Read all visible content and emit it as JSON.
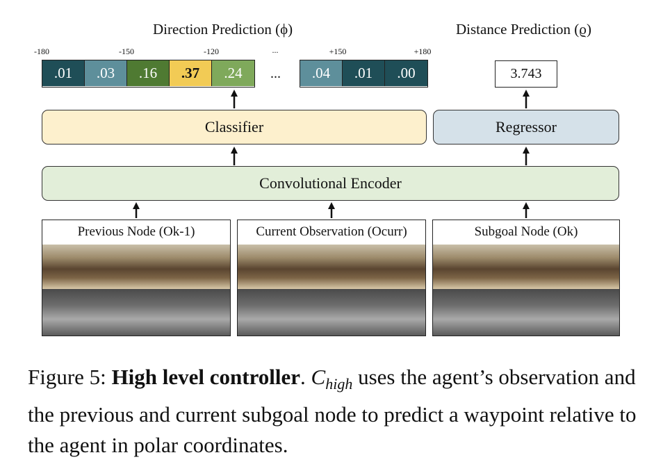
{
  "direction": {
    "title": "Direction Prediction (ϕ)",
    "ticks": [
      "-180",
      "-150",
      "-120",
      "...",
      "+150",
      "+180"
    ],
    "cells_left": [
      {
        "value": ".01",
        "color": "#1f4e57",
        "bold": false
      },
      {
        "value": ".03",
        "color": "#5e8f9b",
        "bold": false
      },
      {
        "value": ".16",
        "color": "#4f7a32",
        "bold": false
      },
      {
        "value": ".37",
        "color": "#f2cb55",
        "bold": true
      },
      {
        "value": ".24",
        "color": "#7fa95b",
        "bold": false
      }
    ],
    "ellipsis": "...",
    "cells_right": [
      {
        "value": ".04",
        "color": "#5e8f9b",
        "bold": false
      },
      {
        "value": ".01",
        "color": "#1f4e57",
        "bold": false
      },
      {
        "value": ".00",
        "color": "#1f4e57",
        "bold": false
      }
    ]
  },
  "distance": {
    "title": "Distance Prediction (ϱ)",
    "value": "3.743"
  },
  "blocks": {
    "classifier": "Classifier",
    "regressor": "Regressor",
    "encoder": "Convolutional Encoder"
  },
  "colors": {
    "classifier_fill": "#fdf0cd",
    "regressor_fill": "#d5e1e9",
    "encoder_fill": "#e2eed9"
  },
  "panels": [
    {
      "title": "Previous Node (Ok-1)"
    },
    {
      "title": "Current Observation (Ocurr)"
    },
    {
      "title": "Subgoal Node (Ok)"
    }
  ],
  "caption": {
    "prefix": "Figure 5: ",
    "bold": "High level controller",
    "after_bold": ".  ",
    "math": "C",
    "math_sub": "high",
    "rest": " uses the agent’s observation and the previous and current subgoal node to predict a waypoint relative to the agent in polar coordinates."
  }
}
